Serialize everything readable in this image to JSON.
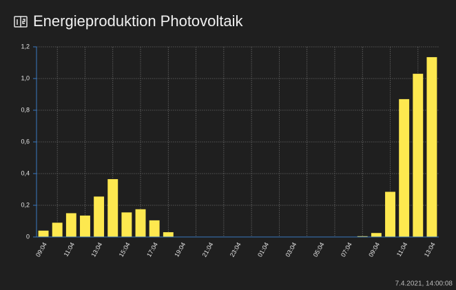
{
  "chart_data": {
    "type": "bar",
    "title": "Energieproduktion Photovoltaik",
    "timestamp": "7.4.2021, 14:00:08",
    "categories": [
      "09:04",
      null,
      "11:04",
      null,
      "13:04",
      null,
      "15:04",
      null,
      "17:04",
      null,
      "19:04",
      null,
      "21:04",
      null,
      "23:04",
      null,
      "01:04",
      null,
      "03:04",
      null,
      "05:04",
      null,
      "07:04",
      null,
      "09:04",
      null,
      "11:04",
      null,
      "13:04"
    ],
    "values": [
      0.04,
      0.09,
      0.15,
      0.135,
      0.255,
      0.365,
      0.155,
      0.175,
      0.105,
      0.03,
      0,
      0,
      0,
      0,
      0,
      0,
      0,
      0,
      0,
      0,
      0,
      0,
      0,
      0.005,
      0.025,
      0.285,
      0.87,
      1.03,
      1.135
    ],
    "color": "#fde84f",
    "ylim": [
      0,
      1.2
    ],
    "yticks": [
      0,
      {
        "value": 0.2,
        "label": "0,2"
      },
      {
        "value": 0.4,
        "label": "0,4"
      },
      {
        "value": 0.6,
        "label": "0,6"
      },
      {
        "value": 0.8,
        "label": "0,8"
      },
      {
        "value": 1.0,
        "label": "1,0"
      },
      {
        "value": 1.2,
        "label": "1,2"
      }
    ],
    "grid": true
  }
}
